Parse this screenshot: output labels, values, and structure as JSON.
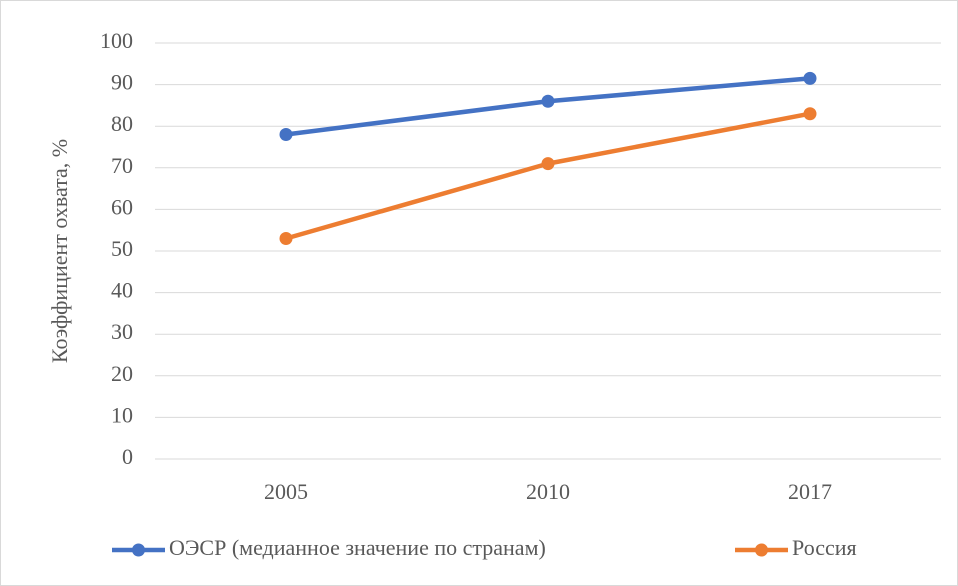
{
  "chart_data": {
    "type": "line",
    "ylabel": "Коэффициент охвата, %",
    "categories": [
      "2005",
      "2010",
      "2017"
    ],
    "series": [
      {
        "name": "ОЭСР (медианное значение по странам)",
        "color": "#4472c4",
        "values": [
          78,
          86,
          91.5
        ]
      },
      {
        "name": "Россия",
        "color": "#ed7d31",
        "values": [
          53,
          71,
          83
        ]
      }
    ],
    "ylim": [
      0,
      100
    ],
    "yticks": [
      0,
      10,
      20,
      30,
      40,
      50,
      60,
      70,
      80,
      90,
      100
    ],
    "grid": true,
    "legend": "bottom"
  }
}
